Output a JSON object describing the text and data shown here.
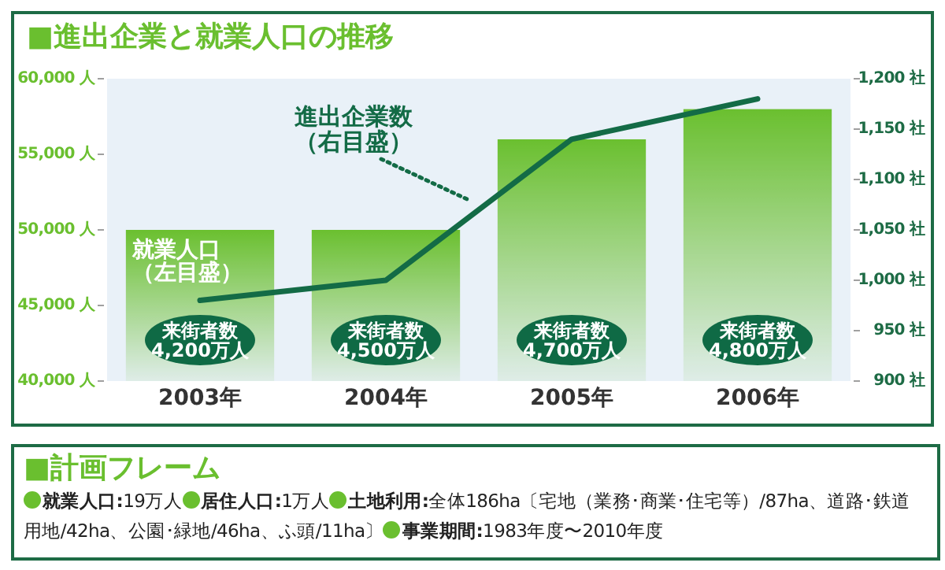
{
  "chart_data": [
    {
      "type": "bar",
      "title": "■進出企業と就業人口の推移",
      "categories": [
        "2003年",
        "2004年",
        "2005年",
        "2006年"
      ],
      "series": [
        {
          "name": "就業人口（左目盛）",
          "type": "bar",
          "color": "#6abf2f",
          "values": [
            50000,
            50000,
            56000,
            58000
          ]
        },
        {
          "name": "進出企業数（右目盛）",
          "type": "line",
          "axis": "y2",
          "color": "#136b46",
          "values": [
            980,
            1000,
            1140,
            1180
          ]
        }
      ],
      "ylim": [
        40000,
        60000
      ],
      "yticks": [
        {
          "value": 40000,
          "label": "40,000 人"
        },
        {
          "value": 45000,
          "label": "45,000 人"
        },
        {
          "value": 50000,
          "label": "50,000 人"
        },
        {
          "value": 55000,
          "label": "55,000 人"
        },
        {
          "value": 60000,
          "label": "60,000 人"
        }
      ],
      "y2lim": [
        900,
        1200
      ],
      "y2ticks": [
        {
          "value": 900,
          "label": "900 社"
        },
        {
          "value": 950,
          "label": "950 社"
        },
        {
          "value": 1000,
          "label": "1,000 社"
        },
        {
          "value": 1050,
          "label": "1,050 社"
        },
        {
          "value": 1100,
          "label": "1,100 社"
        },
        {
          "value": 1150,
          "label": "1,150 社"
        },
        {
          "value": 1200,
          "label": "1,200 社"
        }
      ],
      "annotations": [
        "来街者数\n4,200万人",
        "来街者数\n4,500万人",
        "来街者数\n4,700万人",
        "来街者数\n4,800万人"
      ],
      "grid": false
    },
    {
      "type": "other",
      "title": "■計画フレーム",
      "annotations": [
        "就業人口:19万人",
        "居住人口:1万人",
        "土地利用:全体186ha〔宅地（業務･商業･住宅等）/87ha、道路･鉄道用地/42ha、公園･緑地/46ha、ふ頭/11ha〕",
        "事業期間:1983年度〜2010年度"
      ]
    }
  ]
}
